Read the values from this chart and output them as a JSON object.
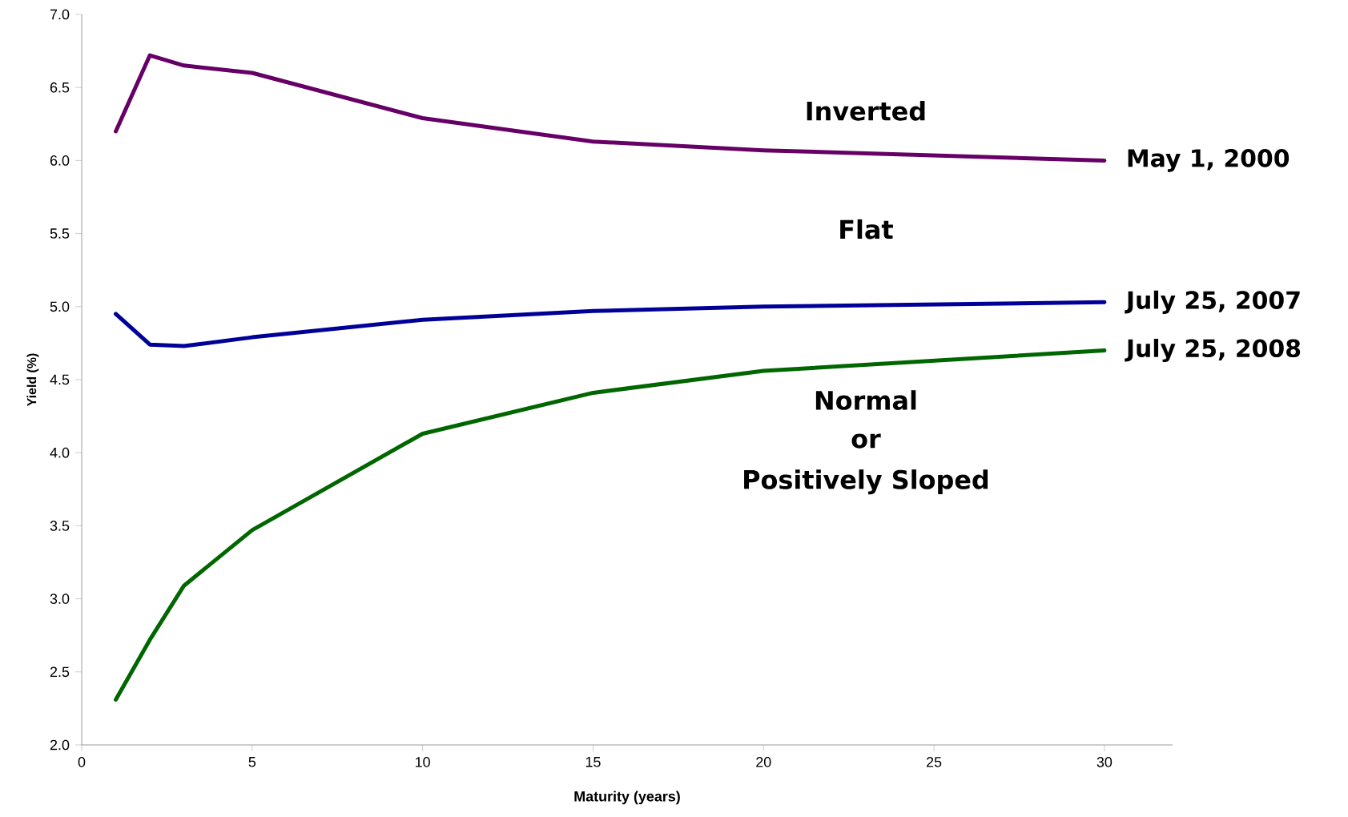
{
  "chart_data": {
    "type": "line",
    "xlabel": "Maturity (years)",
    "ylabel": "Yield (%)",
    "x": [
      1,
      2,
      3,
      5,
      10,
      15,
      20,
      30
    ],
    "series": [
      {
        "name": "May 1, 2000",
        "color": "#660066",
        "values": [
          6.2,
          6.72,
          6.65,
          6.6,
          6.29,
          6.13,
          6.07,
          6.0
        ]
      },
      {
        "name": "July 25, 2007",
        "color": "#000099",
        "values": [
          4.95,
          4.74,
          4.73,
          4.79,
          4.91,
          4.97,
          5.0,
          5.03
        ]
      },
      {
        "name": "July 25, 2008",
        "color": "#006600",
        "values": [
          2.31,
          2.72,
          3.09,
          3.47,
          4.13,
          4.41,
          4.56,
          4.7
        ]
      }
    ],
    "annotations": [
      "Inverted",
      "Flat",
      "Normal",
      "or",
      "Positively Sloped"
    ],
    "xlim": [
      0,
      32
    ],
    "ylim": [
      2.0,
      7.0
    ],
    "xticks": [
      0,
      5,
      10,
      15,
      20,
      25,
      30
    ],
    "yticks": [
      {
        "value": 2.0,
        "label": "2.0"
      },
      {
        "value": 2.5,
        "label": "2.5"
      },
      {
        "value": 3.0,
        "label": "3.0"
      },
      {
        "value": 3.5,
        "label": "3.5"
      },
      {
        "value": 4.0,
        "label": "4.0"
      },
      {
        "value": 4.5,
        "label": "4.5"
      },
      {
        "value": 5.0,
        "label": "5.0"
      },
      {
        "value": 5.5,
        "label": "5.5"
      },
      {
        "value": 6.0,
        "label": "6.0"
      },
      {
        "value": 6.5,
        "label": "6.5"
      },
      {
        "value": 7.0,
        "label": "7.0"
      }
    ],
    "grid": false,
    "legend": false,
    "marker": "none",
    "line_style": "solid"
  }
}
